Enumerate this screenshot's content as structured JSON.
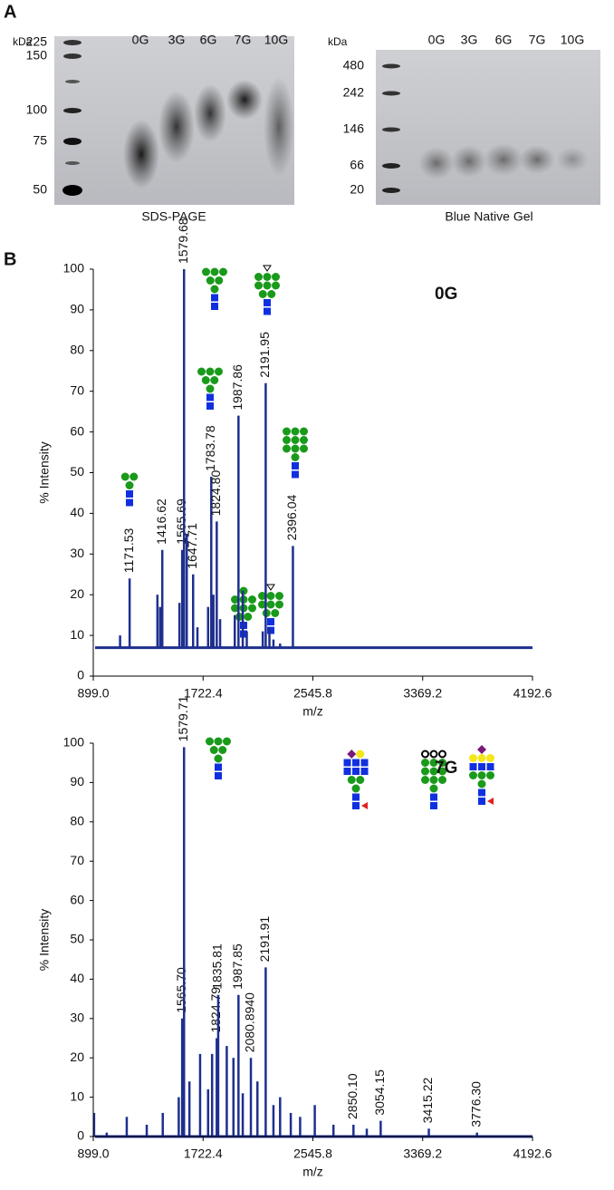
{
  "panel_labels": [
    "A",
    "B"
  ],
  "gels": [
    {
      "unit": "kDa",
      "markers": [
        "225",
        "150",
        "100",
        "75",
        "50"
      ],
      "lanes": [
        "0G",
        "3G",
        "6G",
        "7G",
        "10G"
      ],
      "caption": "SDS-PAGE"
    },
    {
      "unit": "kDa",
      "markers": [
        "480",
        "242",
        "146",
        "66",
        "20"
      ],
      "lanes": [
        "0G",
        "3G",
        "6G",
        "7G",
        "10G"
      ],
      "caption": "Blue Native Gel"
    }
  ],
  "chart_data": [
    {
      "type": "spectrum",
      "annotation": "0G",
      "xlabel": "m/z",
      "ylabel": "% Intensity",
      "xlim": [
        899.0,
        4192.6
      ],
      "xticks": [
        {
          "value": 899.0,
          "label": "899.0"
        },
        1722.4,
        2545.8,
        3369.2,
        4192.6
      ],
      "ylim": [
        0,
        100
      ],
      "yticks": [
        0,
        10,
        20,
        30,
        40,
        50,
        60,
        70,
        80,
        90,
        100
      ],
      "baseline": 7,
      "color": "#1f2f8f",
      "label_color": "#9b2a2a",
      "series": [
        {
          "x": [
            1100,
            1171.53,
            1380,
            1400,
            1416.62,
            1545,
            1565.69,
            1579.68,
            1600,
            1647.71,
            1680,
            1760,
            1783.78,
            1800,
            1824.8,
            1850,
            1960,
            1987.86,
            2020,
            2050,
            2170,
            2191.95,
            2220,
            2250,
            2300,
            2396.04
          ],
          "values": [
            10,
            24,
            20,
            17,
            31,
            18,
            31,
            100,
            35,
            25,
            12,
            17,
            49,
            20,
            38,
            14,
            15,
            64,
            21,
            11,
            11,
            72,
            12,
            9,
            8,
            32
          ],
          "x_labels": [
            null,
            "1171.53",
            null,
            null,
            "1416.62",
            null,
            "1565.69",
            "1579.68",
            null,
            "1647.71",
            null,
            null,
            "1783.78",
            null,
            "1824.80",
            null,
            null,
            "1987.86",
            null,
            null,
            null,
            "2191.95",
            null,
            null,
            null,
            "2396.04"
          ]
        }
      ]
    },
    {
      "type": "spectrum",
      "annotation": "7G",
      "xlabel": "m/z",
      "ylabel": "% Intensity",
      "xlim": [
        899.0,
        4192.6
      ],
      "xticks": [
        {
          "value": 899.0,
          "label": "899.0"
        },
        1722.4,
        2545.8,
        3369.2,
        4192.6
      ],
      "ylim": [
        0,
        100
      ],
      "yticks": [
        0,
        10,
        20,
        30,
        40,
        50,
        60,
        70,
        80,
        90,
        100
      ],
      "baseline": 0,
      "color": "#1f2f8f",
      "label_color": "#9b2a2a",
      "series": [
        {
          "x": [
            905,
            1000,
            1150,
            1300,
            1420,
            1540,
            1565.7,
            1579.71,
            1620,
            1700,
            1760,
            1790,
            1824.79,
            1835.81,
            1900,
            1950,
            1987.85,
            2020,
            2080.894,
            2130,
            2191.91,
            2250,
            2300,
            2380,
            2450,
            2560,
            2700,
            2850.1,
            2950,
            3054.15,
            3415.22,
            3776.3
          ],
          "values": [
            6,
            1,
            5,
            3,
            6,
            10,
            30,
            99,
            14,
            21,
            12,
            21,
            25,
            36,
            23,
            20,
            36,
            11,
            20,
            14,
            43,
            8,
            10,
            6,
            5,
            8,
            3,
            3,
            2,
            4,
            2,
            1
          ],
          "x_labels": [
            null,
            null,
            null,
            null,
            null,
            null,
            "1565.70",
            "1579.71",
            null,
            null,
            null,
            null,
            "1824.79",
            "1835.81",
            null,
            null,
            "1987.85",
            null,
            "2080.8940",
            null,
            "2191.91",
            null,
            null,
            null,
            null,
            null,
            null,
            "2850.10",
            null,
            "3054.15",
            "3415.22",
            "3776.30"
          ]
        }
      ]
    }
  ]
}
